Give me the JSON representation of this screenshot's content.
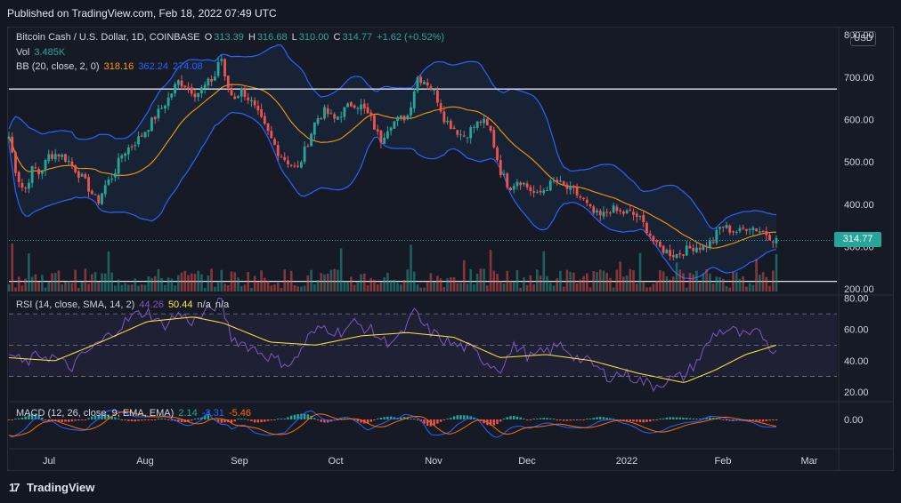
{
  "header": {
    "published": "Published on TradingView.com, Feb 18, 2022 07:49 UTC"
  },
  "legend": {
    "symbol": "Bitcoin Cash / U.S. Dollar, 1D, COINBASE",
    "o_label": "O",
    "o": "313.39",
    "h_label": "H",
    "h": "316.68",
    "l_label": "L",
    "l": "310.00",
    "c_label": "C",
    "c": "314.77",
    "chg": "+1.62 (+0.52%)",
    "vol_label": "Vol",
    "vol": "3.485K",
    "bb_label": "BB (20, close, 2, 0)",
    "bb_basis": "318.16",
    "bb_upper": "362.24",
    "bb_lower": "274.08",
    "rsi_label": "RSI (14, close, SMA, 14, 2)",
    "rsi": "44.26",
    "rsi_sma": "50.44",
    "rsi_na1": "n/a",
    "rsi_na2": "n/a",
    "macd_label": "MACD (12, 26, close, 9, EMA, EMA)",
    "macd_hist": "2.14",
    "macd": "-3.31",
    "signal": "-5.46"
  },
  "currency_button": "USD",
  "last_price": "314.77",
  "branding": "TradingView",
  "colors": {
    "up": "#26a69a",
    "down": "#ef5350",
    "bb_band": "#2962ff",
    "bb_basis": "#ff9800",
    "rsi": "#7e57c2",
    "rsi_sma": "#ffeb3b",
    "macd": "#2962ff",
    "signal": "#ff6d00"
  },
  "chart_data": [
    {
      "type": "candlestick",
      "title": "Bitcoin Cash / U.S. Dollar, 1D, COINBASE",
      "x_ticks": [
        "Jul",
        "Aug",
        "Sep",
        "Oct",
        "Nov",
        "Dec",
        "2022",
        "Feb",
        "Mar"
      ],
      "y_ticks": [
        "800.00",
        "700.00",
        "600.00",
        "500.00",
        "400.00",
        "300.00",
        "200.00"
      ],
      "ylim": [
        190,
        815
      ],
      "horizontal_levels": [
        672,
        218
      ],
      "close_path": [
        [
          0,
          560
        ],
        [
          5,
          470
        ],
        [
          10,
          430
        ],
        [
          16,
          490
        ],
        [
          20,
          470
        ],
        [
          26,
          515
        ],
        [
          32,
          520
        ],
        [
          38,
          505
        ],
        [
          44,
          480
        ],
        [
          50,
          450
        ],
        [
          55,
          420
        ],
        [
          58,
          405
        ],
        [
          62,
          440
        ],
        [
          68,
          470
        ],
        [
          74,
          520
        ],
        [
          80,
          540
        ],
        [
          86,
          560
        ],
        [
          92,
          590
        ],
        [
          98,
          620
        ],
        [
          104,
          650
        ],
        [
          110,
          690
        ],
        [
          116,
          680
        ],
        [
          122,
          660
        ],
        [
          128,
          680
        ],
        [
          134,
          700
        ],
        [
          138,
          760
        ],
        [
          140,
          700
        ],
        [
          146,
          650
        ],
        [
          152,
          670
        ],
        [
          158,
          640
        ],
        [
          164,
          600
        ],
        [
          170,
          560
        ],
        [
          176,
          520
        ],
        [
          182,
          500
        ],
        [
          188,
          480
        ],
        [
          194,
          540
        ],
        [
          200,
          600
        ],
        [
          206,
          620
        ],
        [
          212,
          600
        ],
        [
          218,
          620
        ],
        [
          224,
          640
        ],
        [
          230,
          630
        ],
        [
          236,
          600
        ],
        [
          242,
          550
        ],
        [
          248,
          590
        ],
        [
          254,
          600
        ],
        [
          260,
          610
        ],
        [
          266,
          700
        ],
        [
          272,
          690
        ],
        [
          278,
          660
        ],
        [
          284,
          600
        ],
        [
          290,
          580
        ],
        [
          296,
          560
        ],
        [
          302,
          580
        ],
        [
          308,
          600
        ],
        [
          314,
          570
        ],
        [
          320,
          480
        ],
        [
          326,
          440
        ],
        [
          332,
          460
        ],
        [
          338,
          440
        ],
        [
          344,
          420
        ],
        [
          350,
          440
        ],
        [
          356,
          455
        ],
        [
          362,
          440
        ],
        [
          368,
          430
        ],
        [
          374,
          410
        ],
        [
          380,
          380
        ],
        [
          386,
          370
        ],
        [
          392,
          390
        ],
        [
          398,
          380
        ],
        [
          404,
          380
        ],
        [
          410,
          370
        ],
        [
          416,
          340
        ],
        [
          422,
          300
        ],
        [
          428,
          290
        ],
        [
          434,
          280
        ],
        [
          440,
          290
        ],
        [
          446,
          300
        ],
        [
          452,
          300
        ],
        [
          458,
          310
        ],
        [
          464,
          350
        ],
        [
          470,
          340
        ],
        [
          476,
          335
        ],
        [
          482,
          350
        ],
        [
          488,
          340
        ],
        [
          494,
          330
        ],
        [
          500,
          314.77
        ]
      ],
      "last_close": 314.77,
      "series": [
        {
          "name": "BB (20, close, 2, 0) basis",
          "last": 318.16
        },
        {
          "name": "BB upper",
          "last": 362.24
        },
        {
          "name": "BB lower",
          "last": 274.08
        }
      ]
    },
    {
      "type": "bar",
      "title": "Vol",
      "last": 3485
    },
    {
      "type": "line",
      "title": "RSI (14, close, SMA, 14, 2)",
      "y_ticks": [
        "80.00",
        "60.00",
        "40.00",
        "20.00"
      ],
      "ylim": [
        15,
        82
      ],
      "band": [
        30,
        70
      ],
      "series": [
        {
          "name": "RSI",
          "last": 44.26,
          "values": [
            [
              0,
              45
            ],
            [
              10,
              38
            ],
            [
              20,
              44
            ],
            [
              30,
              42
            ],
            [
              40,
              35
            ],
            [
              50,
              45
            ],
            [
              60,
              52
            ],
            [
              70,
              60
            ],
            [
              80,
              68
            ],
            [
              90,
              72
            ],
            [
              100,
              62
            ],
            [
              110,
              70
            ],
            [
              120,
              65
            ],
            [
              130,
              72
            ],
            [
              138,
              78
            ],
            [
              145,
              55
            ],
            [
              155,
              50
            ],
            [
              165,
              45
            ],
            [
              175,
              40
            ],
            [
              185,
              38
            ],
            [
              195,
              55
            ],
            [
              205,
              62
            ],
            [
              215,
              58
            ],
            [
              225,
              64
            ],
            [
              235,
              60
            ],
            [
              245,
              52
            ],
            [
              255,
              55
            ],
            [
              265,
              72
            ],
            [
              270,
              62
            ],
            [
              280,
              55
            ],
            [
              290,
              50
            ],
            [
              300,
              48
            ],
            [
              310,
              40
            ],
            [
              320,
              35
            ],
            [
              330,
              50
            ],
            [
              340,
              42
            ],
            [
              350,
              46
            ],
            [
              360,
              50
            ],
            [
              370,
              42
            ],
            [
              380,
              38
            ],
            [
              390,
              30
            ],
            [
              400,
              32
            ],
            [
              410,
              28
            ],
            [
              420,
              24
            ],
            [
              430,
              28
            ],
            [
              440,
              30
            ],
            [
              450,
              42
            ],
            [
              460,
              58
            ],
            [
              470,
              60
            ],
            [
              480,
              55
            ],
            [
              490,
              58
            ],
            [
              500,
              44
            ]
          ]
        },
        {
          "name": "SMA",
          "last": 50.44,
          "values": [
            [
              0,
              42
            ],
            [
              30,
              40
            ],
            [
              60,
              52
            ],
            [
              90,
              65
            ],
            [
              120,
              68
            ],
            [
              140,
              64
            ],
            [
              170,
              52
            ],
            [
              200,
              50
            ],
            [
              230,
              56
            ],
            [
              260,
              58
            ],
            [
              290,
              55
            ],
            [
              320,
              42
            ],
            [
              350,
              44
            ],
            [
              380,
              40
            ],
            [
              410,
              32
            ],
            [
              440,
              26
            ],
            [
              460,
              34
            ],
            [
              480,
              44
            ],
            [
              500,
              50
            ]
          ]
        }
      ]
    },
    {
      "type": "line",
      "title": "MACD (12, 26, close, 9, EMA, EMA)",
      "y_ticks": [
        "0.00"
      ],
      "series": [
        {
          "name": "MACD",
          "last": -3.31
        },
        {
          "name": "Signal",
          "last": -5.46
        },
        {
          "name": "Histogram",
          "last": 2.14
        }
      ]
    }
  ]
}
